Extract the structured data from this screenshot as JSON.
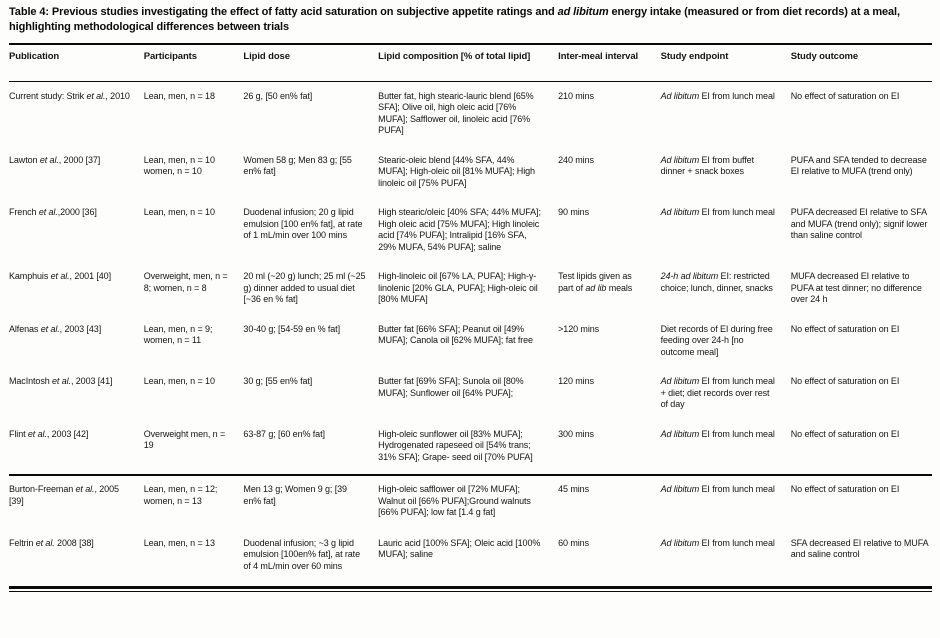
{
  "render": {
    "italic_phrases": [
      "24-h ad libitum",
      "Ad libitum",
      "ad libitum",
      "ad lib",
      "et al."
    ],
    "text_color": "#151515",
    "rule_color": "#0a0a0a",
    "background_color": "#fdfdfc"
  },
  "title": "Table 4: Previous studies investigating the effect of fatty acid saturation on subjective appetite ratings and ad libitum energy intake (measured or from diet records) at a meal, highlighting methodological differences between trials",
  "table": {
    "headers": [
      "Publication",
      "Participants",
      "Lipid dose",
      "Lipid composition [% of total lipid]",
      "Inter-meal interval",
      "Study endpoint",
      "Study outcome"
    ],
    "rows": [
      {
        "c": [
          "Current study: Strik et al., 2010",
          "Lean, men, n = 18",
          "26 g, [50 en% fat]",
          "Butter fat, high stearic-lauric blend [65% SFA]; Olive oil, high oleic acid [76% MUFA]; Safflower oil, linoleic acid [76% PUFA]",
          "210 mins",
          "Ad libitum EI from lunch meal",
          "No effect of saturation on EI"
        ]
      },
      {
        "c": [
          "Lawton et al., 2000 [37]",
          "Lean, men, n = 10 women, n = 10",
          "Women 58 g; Men 83 g; [55 en% fat]",
          "Stearic-oleic blend [44% SFA, 44% MUFA]; High-oleic oil [81% MUFA]; High linoleic oil [75% PUFA]",
          "240 mins",
          "Ad libitum EI from buffet dinner + snack boxes",
          "PUFA and SFA tended to decrease EI relative to MUFA (trend only)"
        ]
      },
      {
        "c": [
          "French et al.,2000 [36]",
          "Lean, men, n = 10",
          "Duodenal infusion; 20 g lipid emulsion [100 en% fat], at rate of 1 mL/min over 100 mins",
          "High stearic/oleic [40% SFA; 44% MUFA]; High oleic acid [75% MUFA]; High linoleic acid [74% PUFA]; Intralipid [16% SFA, 29% MUFA, 54% PUFA]; saline",
          "90 mins",
          "Ad libitum EI from lunch meal",
          "PUFA decreased EI relative to SFA and MUFA (trend only); signif lower than saline control"
        ]
      },
      {
        "c": [
          "Kamphuis et al., 2001 [40]",
          "Overweight, men, n = 8; women, n = 8",
          "20 ml (~20 g) lunch; 25 ml (~25 g) dinner added to usual diet [~36 en % fat]",
          "High-linoleic oil [67% LA, PUFA]; High-γ-linolenic [20% GLA, PUFA]; High-oleic oil [80% MUFA]",
          "Test lipids given as part of ad lib meals",
          "24-h ad libitum EI: restricted choice; lunch, dinner, snacks",
          "MUFA decreased EI relative to PUFA at test dinner; no difference over 24 h"
        ]
      },
      {
        "c": [
          "Alfenas et al., 2003 [43]",
          "Lean, men, n = 9; women, n = 11",
          "30-40 g; [54-59 en % fat]",
          "Butter fat [66% SFA]; Peanut oil [49% MUFA]; Canola oil [62% MUFA]; fat free",
          ">120 mins",
          "Diet records of EI during free feeding over 24-h [no outcome meal]",
          "No effect of saturation on EI"
        ]
      },
      {
        "c": [
          "MacIntosh et al., 2003 [41]",
          "Lean, men, n = 10",
          "30 g; [55 en% fat]",
          "Butter fat [69% SFA]; Sunola oil [80% MUFA]; Sunflower oil [64% PUFA];",
          "120 mins",
          "Ad libitum EI from lunch meal + diet; diet records over rest of day",
          "No effect of saturation on EI"
        ]
      },
      {
        "c": [
          "Flint et al., 2003 [42]",
          "Overweight men, n = 19",
          "63-87 g; [60 en% fat]",
          "High-oleic sunflower oil [83% MUFA]; Hydrogenated rapeseed oil [54% trans; 31% SFA]; Grape- seed oil [70% PUFA]",
          "300 mins",
          "Ad libitum EI from lunch meal",
          "No effect of saturation on EI"
        ]
      },
      {
        "c": [
          "Burton-Freeman et al., 2005 [39]",
          "Lean, men, n = 12; women, n = 13",
          "Men 13 g; Women 9 g; [39 en% fat]",
          "High-oleic safflower oil [72% MUFA]; Walnut oil [66% PUFA];Ground walnuts [66% PUFA]; low fat [1.4 g fat]",
          "45 mins",
          "Ad libitum EI from lunch meal",
          "No effect of saturation on EI"
        ]
      },
      {
        "c": [
          "Feltrin et al. 2008 [38]",
          "Lean, men, n = 13",
          "Duodenal infusion; ~3 g lipid emulsion [100en% fat], at rate of 4 mL/min over 60 mins",
          "Lauric acid [100% SFA]; Oleic acid [100% MUFA]; saline",
          "60 mins",
          "Ad libitum EI from lunch meal",
          "SFA decreased EI relative to MUFA and saline control"
        ]
      }
    ]
  }
}
